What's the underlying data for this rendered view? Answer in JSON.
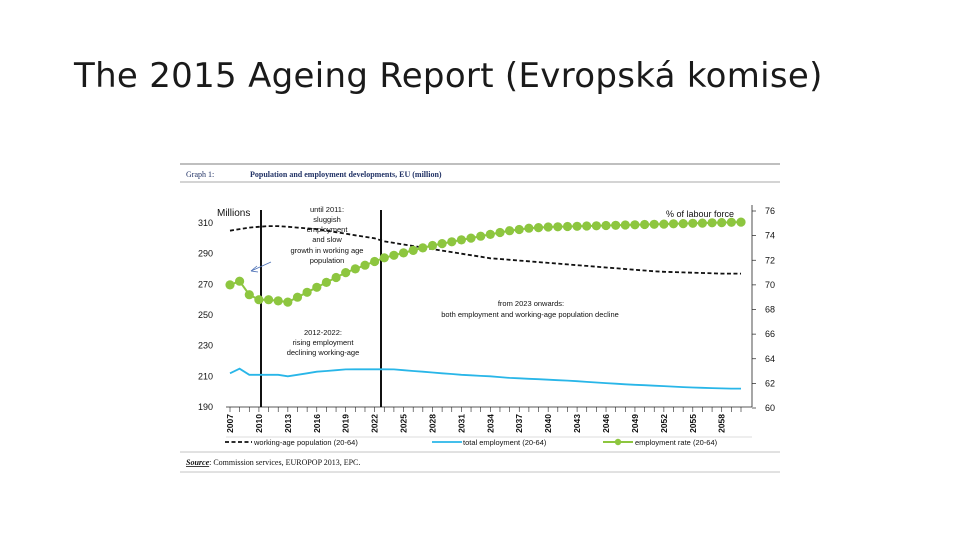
{
  "slide": {
    "title": "The 2015 Ageing Report (Evropská komise)"
  },
  "figure": {
    "graph_number": "Graph 1:",
    "graph_title": "Population and employment developments, EU (million)",
    "source_label": "Source",
    "source_text": ": Commission services, EUROPOP 2013, EPC."
  },
  "chart_data": {
    "type": "line",
    "y_left_label": "Millions",
    "y_right_label": "% of labour force",
    "y_left_lim": [
      190,
      320
    ],
    "y_right_lim": [
      60,
      76
    ],
    "y_left_ticks": [
      "310",
      "290",
      "270",
      "250",
      "230",
      "210",
      "190"
    ],
    "y_right_ticks": [
      "76",
      "74",
      "72",
      "70",
      "68",
      "66",
      "64",
      "62",
      "60"
    ],
    "x_ticks": [
      "2007",
      "2010",
      "2013",
      "2016",
      "2019",
      "2022",
      "2025",
      "2028",
      "2031",
      "2034",
      "2037",
      "2040",
      "2043",
      "2046",
      "2049",
      "2052",
      "2055",
      "2058"
    ],
    "x": [
      2007,
      2008,
      2009,
      2010,
      2011,
      2012,
      2013,
      2014,
      2015,
      2016,
      2017,
      2018,
      2019,
      2020,
      2021,
      2022,
      2023,
      2024,
      2025,
      2026,
      2027,
      2028,
      2029,
      2030,
      2031,
      2032,
      2033,
      2034,
      2035,
      2036,
      2037,
      2038,
      2039,
      2040,
      2041,
      2042,
      2043,
      2044,
      2045,
      2046,
      2047,
      2048,
      2049,
      2050,
      2051,
      2052,
      2053,
      2054,
      2055,
      2056,
      2057,
      2058,
      2059,
      2060
    ],
    "series": [
      {
        "name": "working-age population (20-64)",
        "axis": "left",
        "color": "#111111",
        "style": "dashed",
        "values": [
          305,
          306,
          307,
          307.5,
          308,
          308,
          307.5,
          307,
          306.5,
          306,
          305,
          304,
          303,
          302,
          301,
          300,
          298,
          297,
          296,
          295,
          294,
          293,
          292,
          291,
          290,
          289,
          288,
          287,
          286.5,
          286,
          285.5,
          285,
          284.5,
          284,
          283.5,
          283,
          282.5,
          282,
          281.5,
          281,
          280.5,
          280,
          279.5,
          279,
          278.5,
          278.2,
          278,
          277.8,
          277.6,
          277.4,
          277.2,
          277,
          277,
          277
        ]
      },
      {
        "name": "total employment (20-64)",
        "axis": "left",
        "color": "#29b6e8",
        "style": "solid",
        "values": [
          212,
          215,
          211,
          211,
          211,
          211,
          210,
          211,
          212,
          213,
          213.5,
          214,
          214.5,
          214.6,
          214.6,
          214.6,
          214.6,
          214.5,
          214,
          213.5,
          213,
          212.5,
          212,
          211.5,
          211,
          210.7,
          210.3,
          210,
          209.5,
          209,
          208.7,
          208.4,
          208.1,
          207.8,
          207.5,
          207.2,
          206.8,
          206.4,
          206,
          205.6,
          205.2,
          204.8,
          204.5,
          204.2,
          203.9,
          203.6,
          203.3,
          203,
          202.7,
          202.5,
          202.3,
          202.1,
          202,
          202
        ]
      },
      {
        "name": "employment rate (20-64)",
        "axis": "right",
        "color": "#8dc63f",
        "style": "solid-markers",
        "values": [
          70,
          70.3,
          69.2,
          68.8,
          68.8,
          68.7,
          68.6,
          69.0,
          69.4,
          69.8,
          70.2,
          70.6,
          71.0,
          71.3,
          71.6,
          71.9,
          72.2,
          72.4,
          72.6,
          72.8,
          73.0,
          73.2,
          73.35,
          73.5,
          73.65,
          73.8,
          73.95,
          74.1,
          74.25,
          74.4,
          74.5,
          74.6,
          74.65,
          74.7,
          74.72,
          74.74,
          74.76,
          74.78,
          74.8,
          74.82,
          74.84,
          74.86,
          74.88,
          74.9,
          74.92,
          74.94,
          74.96,
          74.98,
          75.0,
          75.02,
          75.04,
          75.06,
          75.08,
          75.1
        ]
      }
    ],
    "annotations": {
      "until_2011": [
        "until 2011:",
        "sluggish",
        "employment",
        "and slow",
        "growth in working age",
        "population"
      ],
      "period_2012_2022": [
        "2012-2022:",
        "rising  employment",
        "declining working-age"
      ],
      "from_2023": [
        "from 2023 onwards:",
        "both employment and working-age population decline"
      ]
    },
    "grid": false,
    "legend_position": "bottom"
  }
}
